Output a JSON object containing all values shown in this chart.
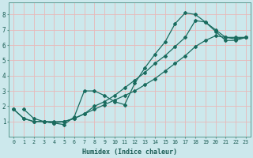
{
  "xlabel": "Humidex (Indice chaleur)",
  "bg_color": "#cce8ec",
  "grid_color": "#e8b8b8",
  "line_color": "#1a6b5e",
  "xlim": [
    -0.5,
    23.5
  ],
  "ylim": [
    0,
    8.8
  ],
  "xticks": [
    0,
    1,
    2,
    3,
    4,
    5,
    6,
    7,
    8,
    9,
    10,
    11,
    12,
    13,
    14,
    15,
    16,
    17,
    18,
    19,
    20,
    21,
    22,
    23
  ],
  "yticks": [
    1,
    2,
    3,
    4,
    5,
    6,
    7,
    8
  ],
  "lines": [
    {
      "x": [
        1,
        2,
        3,
        4,
        5,
        6,
        7,
        8,
        9,
        10,
        11,
        12,
        13,
        14,
        15,
        16,
        17,
        18,
        19,
        20,
        21,
        22,
        23
      ],
      "y": [
        1.8,
        1.2,
        1.0,
        0.9,
        0.8,
        1.3,
        3.0,
        3.0,
        2.7,
        2.3,
        2.1,
        3.5,
        4.5,
        5.4,
        6.2,
        7.4,
        8.1,
        8.0,
        7.5,
        6.9,
        6.3,
        6.3,
        6.5
      ]
    },
    {
      "x": [
        0,
        1,
        2,
        3,
        4,
        5,
        6,
        7,
        8,
        9,
        10,
        11,
        12,
        13,
        14,
        15,
        16,
        17,
        18,
        19,
        20,
        21,
        22,
        23
      ],
      "y": [
        1.8,
        1.2,
        1.0,
        1.0,
        1.0,
        1.0,
        1.2,
        1.5,
        2.0,
        2.3,
        2.7,
        3.2,
        3.7,
        4.2,
        4.8,
        5.3,
        5.9,
        6.5,
        7.6,
        7.5,
        7.0,
        6.5,
        6.4,
        6.5
      ]
    },
    {
      "x": [
        0,
        1,
        2,
        3,
        4,
        5,
        6,
        7,
        8,
        9,
        10,
        11,
        12,
        13,
        14,
        15,
        16,
        17,
        18,
        19,
        20,
        21,
        22,
        23
      ],
      "y": [
        1.8,
        1.2,
        1.0,
        1.0,
        0.9,
        1.0,
        1.2,
        1.5,
        1.8,
        2.1,
        2.4,
        2.7,
        3.0,
        3.4,
        3.8,
        4.3,
        4.8,
        5.3,
        5.9,
        6.3,
        6.6,
        6.5,
        6.5,
        6.5
      ]
    }
  ]
}
